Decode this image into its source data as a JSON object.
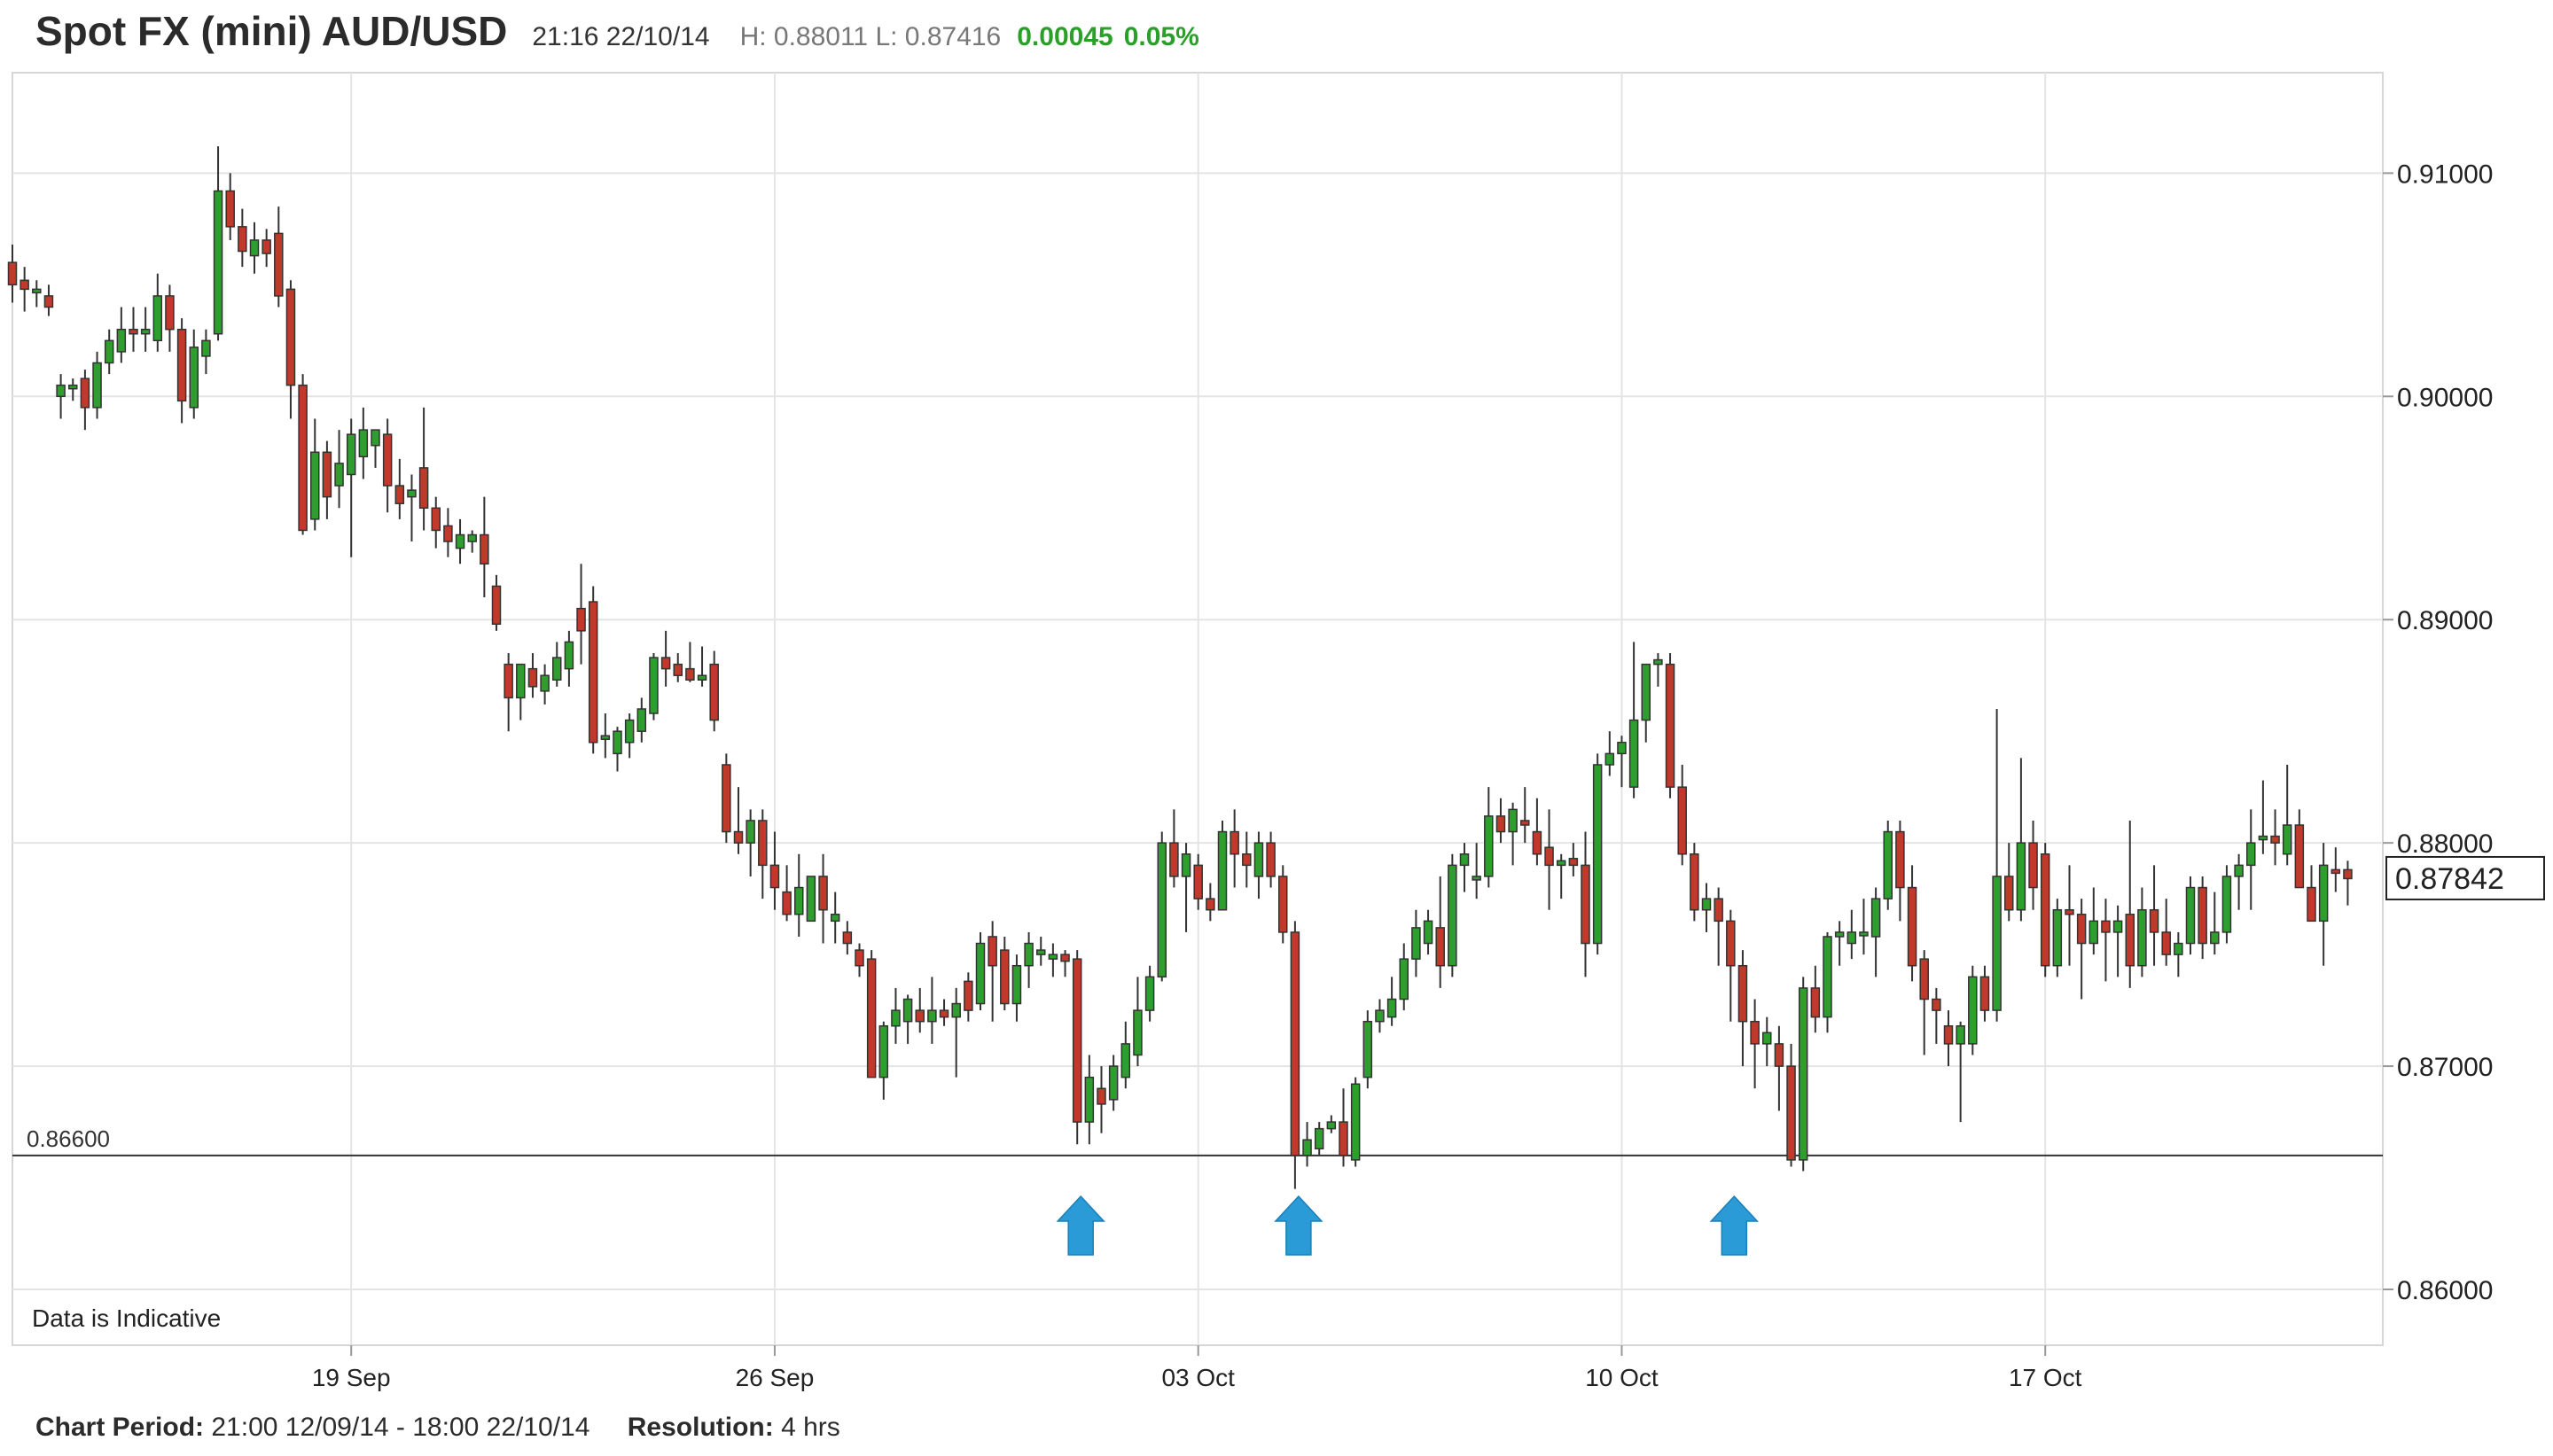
{
  "header": {
    "title": "Spot FX (mini) AUD/USD",
    "timestamp": "21:16 22/10/14",
    "high_low": "H: 0.88011 L: 0.87416",
    "change": "0.00045",
    "change_pct": "0.05%",
    "change_color": "#2aa02a"
  },
  "footer": {
    "period_label": "Chart Period:",
    "period_value": "21:00 12/09/14 - 18:00 22/10/14",
    "resolution_label": "Resolution:",
    "resolution_value": "4 hrs"
  },
  "chart_data": {
    "type": "candlestick",
    "ylim": [
      0.8575,
      0.9145
    ],
    "y_ticks": [
      "0.91000",
      "0.90000",
      "0.89000",
      "0.88000",
      "0.87000",
      "0.86000"
    ],
    "y_tick_values": [
      0.91,
      0.9,
      0.89,
      0.88,
      0.87,
      0.86
    ],
    "x_ticks": [
      "19 Sep",
      "26 Sep",
      "03 Oct",
      "10 Oct",
      "17 Oct"
    ],
    "x_tick_candle_index": [
      28,
      63,
      98,
      133,
      168
    ],
    "current_price": "0.87842",
    "current_price_value": 0.87842,
    "support_level_label": "0.86600",
    "support_level_value": 0.866,
    "annotation": "Data is Indicative",
    "arrow_candle_index": [
      88,
      106,
      142
    ],
    "arrow_color": "#2b9bd8",
    "up_color": "#2e9e2e",
    "down_color": "#c0392b",
    "candles": [
      [
        0.906,
        0.9068,
        0.9042,
        0.905
      ],
      [
        0.9052,
        0.9058,
        0.9038,
        0.9048
      ],
      [
        0.9048,
        0.9052,
        0.904,
        0.9048
      ],
      [
        0.9045,
        0.905,
        0.9036,
        0.904
      ],
      [
        0.9,
        0.901,
        0.899,
        0.9005
      ],
      [
        0.9005,
        0.9008,
        0.8998,
        0.9005
      ],
      [
        0.9008,
        0.9012,
        0.8985,
        0.8995
      ],
      [
        0.8995,
        0.902,
        0.899,
        0.9015
      ],
      [
        0.9015,
        0.903,
        0.901,
        0.9025
      ],
      [
        0.902,
        0.904,
        0.9015,
        0.903
      ],
      [
        0.903,
        0.904,
        0.902,
        0.9028
      ],
      [
        0.9028,
        0.904,
        0.902,
        0.903
      ],
      [
        0.9025,
        0.9055,
        0.902,
        0.9045
      ],
      [
        0.9045,
        0.905,
        0.902,
        0.903
      ],
      [
        0.903,
        0.9035,
        0.8988,
        0.8998
      ],
      [
        0.8995,
        0.903,
        0.899,
        0.9022
      ],
      [
        0.9018,
        0.903,
        0.901,
        0.9025
      ],
      [
        0.9028,
        0.9112,
        0.9025,
        0.9092
      ],
      [
        0.9092,
        0.91,
        0.907,
        0.9076
      ],
      [
        0.9076,
        0.9084,
        0.9058,
        0.9065
      ],
      [
        0.9063,
        0.9078,
        0.9055,
        0.907
      ],
      [
        0.907,
        0.9075,
        0.9058,
        0.9064
      ],
      [
        0.9073,
        0.9085,
        0.904,
        0.9045
      ],
      [
        0.9048,
        0.9052,
        0.899,
        0.9005
      ],
      [
        0.9005,
        0.901,
        0.8938,
        0.894
      ],
      [
        0.8945,
        0.899,
        0.894,
        0.8975
      ],
      [
        0.8975,
        0.898,
        0.8945,
        0.8955
      ],
      [
        0.896,
        0.8985,
        0.895,
        0.897
      ],
      [
        0.8965,
        0.899,
        0.8928,
        0.8983
      ],
      [
        0.8973,
        0.8995,
        0.8963,
        0.8985
      ],
      [
        0.8978,
        0.8985,
        0.8968,
        0.8985
      ],
      [
        0.8983,
        0.899,
        0.8948,
        0.896
      ],
      [
        0.896,
        0.8972,
        0.8945,
        0.8952
      ],
      [
        0.8955,
        0.8965,
        0.8935,
        0.8958
      ],
      [
        0.8968,
        0.8995,
        0.894,
        0.895
      ],
      [
        0.895,
        0.8955,
        0.8932,
        0.894
      ],
      [
        0.8942,
        0.895,
        0.8928,
        0.8935
      ],
      [
        0.8932,
        0.8945,
        0.8925,
        0.8938
      ],
      [
        0.8935,
        0.894,
        0.893,
        0.8938
      ],
      [
        0.8938,
        0.8955,
        0.891,
        0.8925
      ],
      [
        0.8915,
        0.892,
        0.8895,
        0.8898
      ],
      [
        0.888,
        0.8885,
        0.885,
        0.8865
      ],
      [
        0.8865,
        0.888,
        0.8855,
        0.888
      ],
      [
        0.8878,
        0.8885,
        0.8865,
        0.887
      ],
      [
        0.8868,
        0.888,
        0.8862,
        0.8875
      ],
      [
        0.8873,
        0.889,
        0.887,
        0.8883
      ],
      [
        0.8878,
        0.8895,
        0.887,
        0.889
      ],
      [
        0.8905,
        0.8925,
        0.888,
        0.8895
      ],
      [
        0.8908,
        0.8915,
        0.884,
        0.8845
      ],
      [
        0.8848,
        0.8858,
        0.8838,
        0.8848
      ],
      [
        0.884,
        0.8852,
        0.8832,
        0.885
      ],
      [
        0.8845,
        0.8858,
        0.8838,
        0.8855
      ],
      [
        0.885,
        0.8865,
        0.8845,
        0.886
      ],
      [
        0.8858,
        0.8885,
        0.8855,
        0.8883
      ],
      [
        0.8883,
        0.8895,
        0.887,
        0.8878
      ],
      [
        0.888,
        0.8885,
        0.8872,
        0.8875
      ],
      [
        0.8878,
        0.889,
        0.8872,
        0.8873
      ],
      [
        0.8873,
        0.8888,
        0.887,
        0.8875
      ],
      [
        0.888,
        0.8886,
        0.885,
        0.8855
      ],
      [
        0.8835,
        0.884,
        0.88,
        0.8805
      ],
      [
        0.8805,
        0.8825,
        0.8795,
        0.88
      ],
      [
        0.88,
        0.8815,
        0.8785,
        0.881
      ],
      [
        0.881,
        0.8815,
        0.8775,
        0.879
      ],
      [
        0.879,
        0.8805,
        0.877,
        0.878
      ],
      [
        0.8778,
        0.879,
        0.8765,
        0.8768
      ],
      [
        0.8768,
        0.8795,
        0.8758,
        0.878
      ],
      [
        0.8765,
        0.8782,
        0.877,
        0.8785
      ],
      [
        0.8785,
        0.8795,
        0.8755,
        0.877
      ],
      [
        0.8765,
        0.8778,
        0.8755,
        0.8768
      ],
      [
        0.876,
        0.8765,
        0.875,
        0.8755
      ],
      [
        0.8752,
        0.8755,
        0.874,
        0.8745
      ],
      [
        0.8748,
        0.8752,
        0.8695,
        0.8695
      ],
      [
        0.8695,
        0.872,
        0.8685,
        0.8718
      ],
      [
        0.8718,
        0.8735,
        0.871,
        0.8725
      ],
      [
        0.872,
        0.8732,
        0.871,
        0.873
      ],
      [
        0.8725,
        0.8735,
        0.8715,
        0.872
      ],
      [
        0.872,
        0.874,
        0.871,
        0.8725
      ],
      [
        0.8725,
        0.873,
        0.8718,
        0.8722
      ],
      [
        0.8722,
        0.8735,
        0.8695,
        0.8728
      ],
      [
        0.8738,
        0.8742,
        0.872,
        0.8725
      ],
      [
        0.8728,
        0.876,
        0.8725,
        0.8755
      ],
      [
        0.8758,
        0.8765,
        0.872,
        0.8745
      ],
      [
        0.8752,
        0.8758,
        0.8725,
        0.8728
      ],
      [
        0.8728,
        0.875,
        0.872,
        0.8745
      ],
      [
        0.8745,
        0.876,
        0.8735,
        0.8755
      ],
      [
        0.875,
        0.8758,
        0.8745,
        0.8752
      ],
      [
        0.8748,
        0.8755,
        0.874,
        0.875
      ],
      [
        0.875,
        0.8752,
        0.874,
        0.8747
      ],
      [
        0.8748,
        0.8752,
        0.8665,
        0.8675
      ],
      [
        0.8675,
        0.8705,
        0.8665,
        0.8695
      ],
      [
        0.869,
        0.87,
        0.867,
        0.8683
      ],
      [
        0.8685,
        0.8705,
        0.868,
        0.87
      ],
      [
        0.8695,
        0.872,
        0.869,
        0.871
      ],
      [
        0.8705,
        0.874,
        0.87,
        0.8725
      ],
      [
        0.8725,
        0.8745,
        0.872,
        0.874
      ],
      [
        0.874,
        0.8805,
        0.8738,
        0.88
      ],
      [
        0.88,
        0.8815,
        0.878,
        0.8785
      ],
      [
        0.8785,
        0.88,
        0.876,
        0.8795
      ],
      [
        0.879,
        0.8795,
        0.877,
        0.8775
      ],
      [
        0.8775,
        0.8782,
        0.8765,
        0.877
      ],
      [
        0.877,
        0.881,
        0.877,
        0.8805
      ],
      [
        0.8805,
        0.8815,
        0.878,
        0.8795
      ],
      [
        0.8795,
        0.8805,
        0.878,
        0.879
      ],
      [
        0.8785,
        0.8805,
        0.8775,
        0.88
      ],
      [
        0.88,
        0.8805,
        0.878,
        0.8785
      ],
      [
        0.8785,
        0.879,
        0.8755,
        0.876
      ],
      [
        0.876,
        0.8765,
        0.8645,
        0.866
      ],
      [
        0.866,
        0.8675,
        0.8655,
        0.8667
      ],
      [
        0.8663,
        0.8675,
        0.866,
        0.8672
      ],
      [
        0.8672,
        0.8678,
        0.867,
        0.8675
      ],
      [
        0.8675,
        0.869,
        0.8655,
        0.866
      ],
      [
        0.8658,
        0.8695,
        0.8655,
        0.8692
      ],
      [
        0.8695,
        0.8725,
        0.869,
        0.872
      ],
      [
        0.872,
        0.873,
        0.8715,
        0.8725
      ],
      [
        0.8722,
        0.874,
        0.8718,
        0.873
      ],
      [
        0.873,
        0.8755,
        0.8725,
        0.8748
      ],
      [
        0.8748,
        0.877,
        0.874,
        0.8762
      ],
      [
        0.8755,
        0.877,
        0.875,
        0.8765
      ],
      [
        0.8762,
        0.8785,
        0.8735,
        0.8745
      ],
      [
        0.8745,
        0.8795,
        0.874,
        0.879
      ],
      [
        0.879,
        0.88,
        0.8778,
        0.8795
      ],
      [
        0.8785,
        0.88,
        0.8775,
        0.8785
      ],
      [
        0.8785,
        0.8825,
        0.878,
        0.8812
      ],
      [
        0.8812,
        0.882,
        0.88,
        0.8805
      ],
      [
        0.8805,
        0.8818,
        0.879,
        0.8815
      ],
      [
        0.881,
        0.8825,
        0.88,
        0.8808
      ],
      [
        0.8805,
        0.882,
        0.879,
        0.8795
      ],
      [
        0.8798,
        0.8815,
        0.877,
        0.879
      ],
      [
        0.879,
        0.8795,
        0.8775,
        0.8792
      ],
      [
        0.8793,
        0.88,
        0.8785,
        0.879
      ],
      [
        0.879,
        0.8805,
        0.874,
        0.8755
      ],
      [
        0.8755,
        0.884,
        0.875,
        0.8835
      ],
      [
        0.8835,
        0.885,
        0.883,
        0.884
      ],
      [
        0.884,
        0.8848,
        0.8825,
        0.8845
      ],
      [
        0.8825,
        0.889,
        0.882,
        0.8855
      ],
      [
        0.8855,
        0.888,
        0.8845,
        0.888
      ],
      [
        0.888,
        0.8885,
        0.887,
        0.8882
      ],
      [
        0.888,
        0.8885,
        0.882,
        0.8825
      ],
      [
        0.8825,
        0.8835,
        0.879,
        0.8795
      ],
      [
        0.8795,
        0.88,
        0.8765,
        0.877
      ],
      [
        0.877,
        0.8782,
        0.876,
        0.8775
      ],
      [
        0.8775,
        0.878,
        0.8745,
        0.8765
      ],
      [
        0.8765,
        0.877,
        0.872,
        0.8745
      ],
      [
        0.8745,
        0.8752,
        0.87,
        0.872
      ],
      [
        0.872,
        0.873,
        0.869,
        0.871
      ],
      [
        0.871,
        0.8722,
        0.87,
        0.8715
      ],
      [
        0.871,
        0.8718,
        0.868,
        0.87
      ],
      [
        0.87,
        0.871,
        0.8655,
        0.8658
      ],
      [
        0.8658,
        0.874,
        0.8653,
        0.8735
      ],
      [
        0.8735,
        0.8745,
        0.8715,
        0.8722
      ],
      [
        0.8722,
        0.876,
        0.8715,
        0.8758
      ],
      [
        0.8758,
        0.8765,
        0.8745,
        0.876
      ],
      [
        0.8755,
        0.877,
        0.8748,
        0.876
      ],
      [
        0.876,
        0.8775,
        0.875,
        0.876
      ],
      [
        0.8758,
        0.878,
        0.874,
        0.8775
      ],
      [
        0.8775,
        0.881,
        0.877,
        0.8805
      ],
      [
        0.8805,
        0.881,
        0.8765,
        0.878
      ],
      [
        0.878,
        0.879,
        0.8738,
        0.8745
      ],
      [
        0.8748,
        0.8752,
        0.8705,
        0.873
      ],
      [
        0.873,
        0.8735,
        0.871,
        0.8725
      ],
      [
        0.8718,
        0.8725,
        0.87,
        0.871
      ],
      [
        0.871,
        0.872,
        0.8675,
        0.8718
      ],
      [
        0.871,
        0.8745,
        0.8705,
        0.874
      ],
      [
        0.874,
        0.8745,
        0.872,
        0.8725
      ],
      [
        0.8725,
        0.886,
        0.872,
        0.8785
      ],
      [
        0.8785,
        0.88,
        0.8765,
        0.877
      ],
      [
        0.877,
        0.8838,
        0.8765,
        0.88
      ],
      [
        0.88,
        0.881,
        0.877,
        0.878
      ],
      [
        0.8795,
        0.88,
        0.874,
        0.8745
      ],
      [
        0.8745,
        0.8775,
        0.874,
        0.877
      ],
      [
        0.877,
        0.879,
        0.8745,
        0.8768
      ],
      [
        0.8768,
        0.8775,
        0.873,
        0.8755
      ],
      [
        0.8755,
        0.878,
        0.875,
        0.8765
      ],
      [
        0.8765,
        0.8775,
        0.8738,
        0.876
      ],
      [
        0.876,
        0.8772,
        0.874,
        0.8765
      ],
      [
        0.8768,
        0.881,
        0.8735,
        0.8745
      ],
      [
        0.8745,
        0.878,
        0.874,
        0.877
      ],
      [
        0.877,
        0.879,
        0.8745,
        0.876
      ],
      [
        0.876,
        0.8775,
        0.8745,
        0.875
      ],
      [
        0.875,
        0.876,
        0.874,
        0.8755
      ],
      [
        0.8755,
        0.8785,
        0.875,
        0.878
      ],
      [
        0.878,
        0.8785,
        0.8748,
        0.8755
      ],
      [
        0.8755,
        0.8778,
        0.875,
        0.876
      ],
      [
        0.876,
        0.879,
        0.8755,
        0.8785
      ],
      [
        0.8785,
        0.8795,
        0.877,
        0.879
      ],
      [
        0.879,
        0.8815,
        0.877,
        0.88
      ],
      [
        0.8802,
        0.8828,
        0.8795,
        0.8803
      ],
      [
        0.8803,
        0.8815,
        0.879,
        0.88
      ],
      [
        0.8795,
        0.8835,
        0.879,
        0.8808
      ],
      [
        0.8808,
        0.8815,
        0.878,
        0.878
      ],
      [
        0.878,
        0.879,
        0.8765,
        0.8765
      ],
      [
        0.8765,
        0.88,
        0.8745,
        0.879
      ],
      [
        0.8788,
        0.8798,
        0.8778,
        0.8787
      ],
      [
        0.8788,
        0.8792,
        0.8772,
        0.8784
      ]
    ]
  }
}
